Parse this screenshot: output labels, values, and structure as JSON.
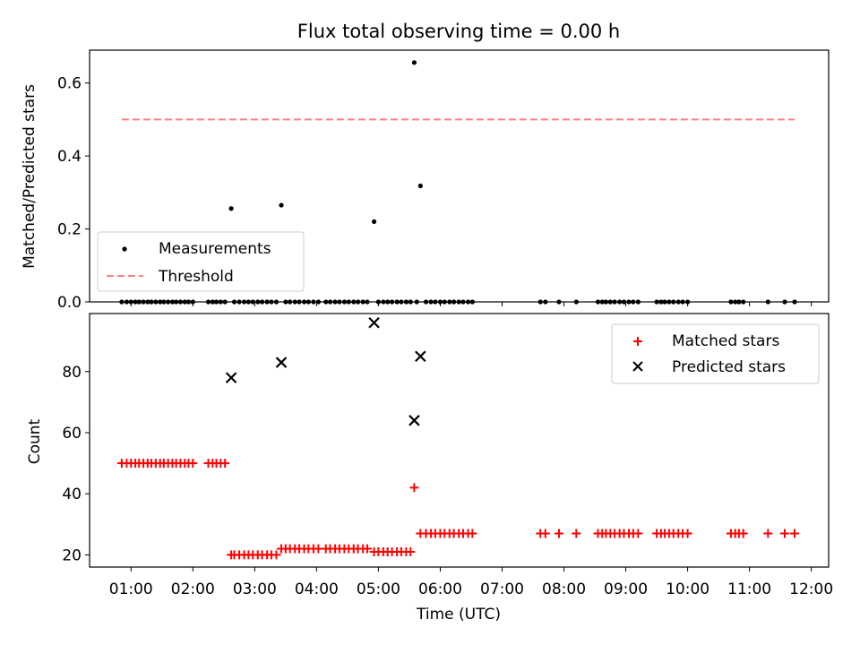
{
  "chart_data": [
    {
      "type": "scatter",
      "title": "Flux total observing time = 0.00 h",
      "xlabel": "",
      "ylabel": "Matched/Predicted stars",
      "xlim": [
        0.33,
        12.28
      ],
      "ylim": [
        0.0,
        0.69
      ],
      "y_ticks": [
        0.0,
        0.2,
        0.4,
        0.6
      ],
      "y_tick_labels": [
        "0.0",
        "0.2",
        "0.4",
        "0.6"
      ],
      "legend": {
        "placement": "lower-left",
        "entries": [
          "Measurements",
          "Threshold"
        ]
      },
      "series": [
        {
          "name": "Measurements",
          "marker": "dot",
          "color": "#000000",
          "points": [
            [
              2.62,
              0.256
            ],
            [
              3.43,
              0.265
            ],
            [
              4.93,
              0.22
            ],
            [
              5.58,
              0.656
            ],
            [
              5.68,
              0.318
            ]
          ],
          "zero_x": [
            0.85,
            0.93,
            1.0,
            1.07,
            1.13,
            1.2,
            1.27,
            1.33,
            1.4,
            1.47,
            1.53,
            1.6,
            1.67,
            1.73,
            1.8,
            1.87,
            1.93,
            2.0,
            2.25,
            2.32,
            2.38,
            2.45,
            2.52,
            2.67,
            2.75,
            2.83,
            2.9,
            2.97,
            3.05,
            3.12,
            3.2,
            3.27,
            3.35,
            3.5,
            3.57,
            3.65,
            3.72,
            3.8,
            3.87,
            3.95,
            4.03,
            4.15,
            4.22,
            4.3,
            4.37,
            4.45,
            4.52,
            4.6,
            4.67,
            4.75,
            4.82,
            5.0,
            5.08,
            5.15,
            5.22,
            5.3,
            5.37,
            5.45,
            5.52,
            5.62,
            5.77,
            5.85,
            5.92,
            6.0,
            6.07,
            6.15,
            6.22,
            6.3,
            6.37,
            6.45,
            6.52,
            7.62,
            7.7,
            7.92,
            8.2,
            8.55,
            8.62,
            8.68,
            8.75,
            8.82,
            8.9,
            8.97,
            9.05,
            9.12,
            9.2,
            9.5,
            9.57,
            9.63,
            9.7,
            9.77,
            9.85,
            9.92,
            10.0,
            10.7,
            10.77,
            10.83,
            10.9,
            11.3,
            11.57,
            11.73
          ]
        },
        {
          "name": "Threshold",
          "marker": "dashed-line",
          "color": "#ff7f7f",
          "x": [
            0.85,
            11.73
          ],
          "y": [
            0.5,
            0.5
          ]
        }
      ]
    },
    {
      "type": "scatter",
      "title": "",
      "xlabel": "Time (UTC)",
      "ylabel": "Count",
      "xlim": [
        0.33,
        12.28
      ],
      "ylim": [
        16.0,
        99.0
      ],
      "y_ticks": [
        20,
        40,
        60,
        80
      ],
      "y_tick_labels": [
        "20",
        "40",
        "60",
        "80"
      ],
      "x_ticks": [
        1,
        2,
        3,
        4,
        5,
        6,
        7,
        8,
        9,
        10,
        11,
        12
      ],
      "x_tick_labels": [
        "01:00",
        "02:00",
        "03:00",
        "04:00",
        "05:00",
        "06:00",
        "07:00",
        "08:00",
        "09:00",
        "10:00",
        "11:00",
        "12:00"
      ],
      "legend": {
        "placement": "upper-right",
        "entries": [
          "Matched stars",
          "Predicted stars"
        ]
      },
      "series": [
        {
          "name": "Matched stars",
          "marker": "plus",
          "color": "#ff0000",
          "points": [
            [
              0.85,
              50
            ],
            [
              0.93,
              50
            ],
            [
              1.0,
              50
            ],
            [
              1.07,
              50
            ],
            [
              1.13,
              50
            ],
            [
              1.2,
              50
            ],
            [
              1.27,
              50
            ],
            [
              1.33,
              50
            ],
            [
              1.4,
              50
            ],
            [
              1.47,
              50
            ],
            [
              1.53,
              50
            ],
            [
              1.6,
              50
            ],
            [
              1.67,
              50
            ],
            [
              1.73,
              50
            ],
            [
              1.8,
              50
            ],
            [
              1.87,
              50
            ],
            [
              1.93,
              50
            ],
            [
              2.0,
              50
            ],
            [
              2.25,
              50
            ],
            [
              2.32,
              50
            ],
            [
              2.38,
              50
            ],
            [
              2.45,
              50
            ],
            [
              2.52,
              50
            ],
            [
              2.62,
              20
            ],
            [
              2.67,
              20
            ],
            [
              2.75,
              20
            ],
            [
              2.83,
              20
            ],
            [
              2.9,
              20
            ],
            [
              2.97,
              20
            ],
            [
              3.05,
              20
            ],
            [
              3.12,
              20
            ],
            [
              3.2,
              20
            ],
            [
              3.27,
              20
            ],
            [
              3.35,
              20
            ],
            [
              3.43,
              22
            ],
            [
              3.5,
              22
            ],
            [
              3.57,
              22
            ],
            [
              3.65,
              22
            ],
            [
              3.72,
              22
            ],
            [
              3.8,
              22
            ],
            [
              3.87,
              22
            ],
            [
              3.95,
              22
            ],
            [
              4.03,
              22
            ],
            [
              4.15,
              22
            ],
            [
              4.22,
              22
            ],
            [
              4.3,
              22
            ],
            [
              4.37,
              22
            ],
            [
              4.45,
              22
            ],
            [
              4.52,
              22
            ],
            [
              4.6,
              22
            ],
            [
              4.67,
              22
            ],
            [
              4.75,
              22
            ],
            [
              4.82,
              22
            ],
            [
              4.93,
              21
            ],
            [
              5.0,
              21
            ],
            [
              5.08,
              21
            ],
            [
              5.15,
              21
            ],
            [
              5.22,
              21
            ],
            [
              5.3,
              21
            ],
            [
              5.37,
              21
            ],
            [
              5.45,
              21
            ],
            [
              5.52,
              21
            ],
            [
              5.58,
              42
            ],
            [
              5.68,
              27
            ],
            [
              5.77,
              27
            ],
            [
              5.85,
              27
            ],
            [
              5.92,
              27
            ],
            [
              6.0,
              27
            ],
            [
              6.07,
              27
            ],
            [
              6.15,
              27
            ],
            [
              6.22,
              27
            ],
            [
              6.3,
              27
            ],
            [
              6.37,
              27
            ],
            [
              6.45,
              27
            ],
            [
              6.52,
              27
            ],
            [
              7.62,
              27
            ],
            [
              7.7,
              27
            ],
            [
              7.92,
              27
            ],
            [
              8.2,
              27
            ],
            [
              8.55,
              27
            ],
            [
              8.62,
              27
            ],
            [
              8.68,
              27
            ],
            [
              8.75,
              27
            ],
            [
              8.82,
              27
            ],
            [
              8.9,
              27
            ],
            [
              8.97,
              27
            ],
            [
              9.05,
              27
            ],
            [
              9.12,
              27
            ],
            [
              9.2,
              27
            ],
            [
              9.5,
              27
            ],
            [
              9.57,
              27
            ],
            [
              9.63,
              27
            ],
            [
              9.7,
              27
            ],
            [
              9.77,
              27
            ],
            [
              9.85,
              27
            ],
            [
              9.92,
              27
            ],
            [
              10.0,
              27
            ],
            [
              10.7,
              27
            ],
            [
              10.77,
              27
            ],
            [
              10.83,
              27
            ],
            [
              10.9,
              27
            ],
            [
              11.3,
              27
            ],
            [
              11.57,
              27
            ],
            [
              11.73,
              27
            ]
          ]
        },
        {
          "name": "Predicted stars",
          "marker": "x",
          "color": "#000000",
          "points": [
            [
              2.62,
              78
            ],
            [
              3.43,
              83
            ],
            [
              4.93,
              96
            ],
            [
              5.58,
              64
            ],
            [
              5.68,
              85
            ]
          ]
        }
      ]
    }
  ]
}
